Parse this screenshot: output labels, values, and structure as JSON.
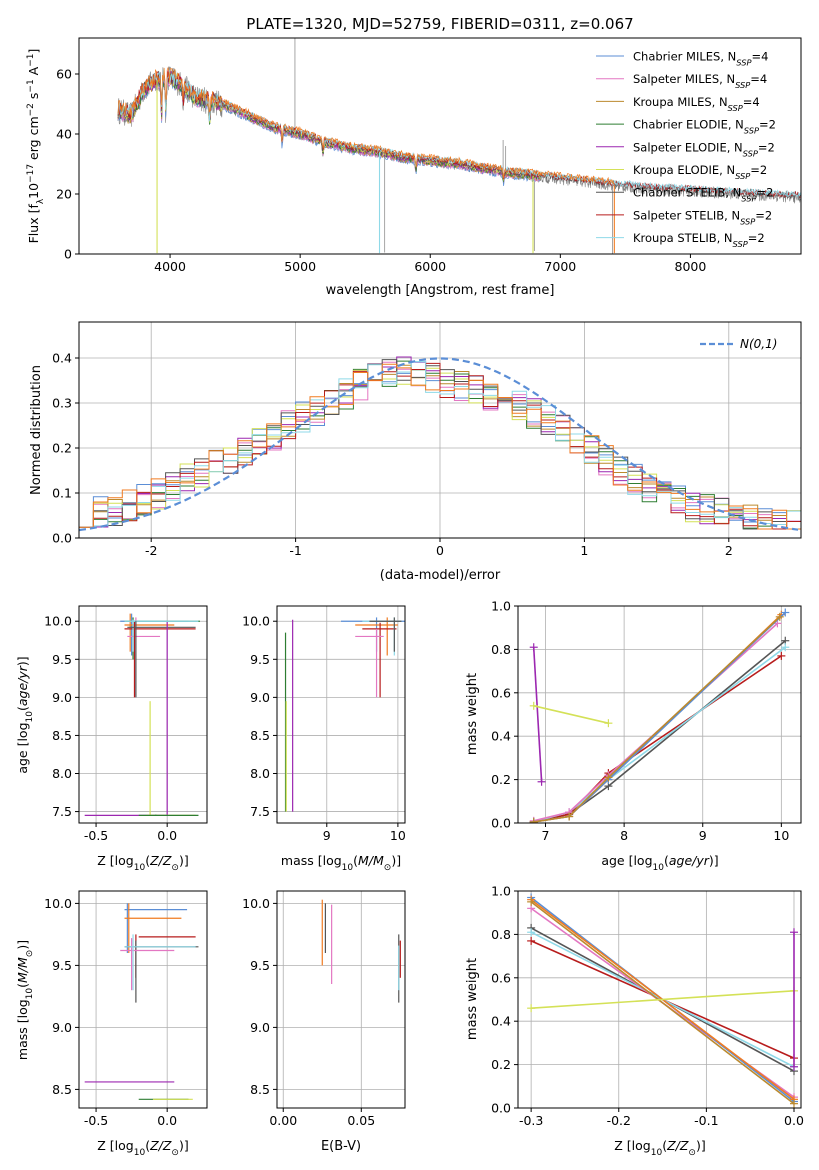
{
  "figure_title": "PLATE=1320, MJD=52759, FIBERID=0311, z=0.067",
  "colors": {
    "grey": "#808080",
    "chabrier_miles": "#5b8ed6",
    "salpeter_miles": "#e377c2",
    "kroupa_miles": "#bc8a2e",
    "chabrier_elodie": "#2e7d32",
    "salpeter_elodie": "#9c27b0",
    "kroupa_elodie": "#d4e157",
    "chabrier_stelib": "#555555",
    "salpeter_stelib": "#b71c1c",
    "kroupa_stelib": "#8fd9e8",
    "orange": "#f07b21",
    "gauss": "#5b8ed6"
  },
  "chart_data": [
    {
      "id": "spectrum",
      "type": "line",
      "xlabel": "wavelength [Angstrom, rest frame]",
      "ylabel": "Flux [f_λ 10^-17 erg cm^-2 s^-1 A^-1]",
      "xlim": [
        3300,
        8850
      ],
      "ylim": [
        0,
        72
      ],
      "xticks": [
        4000,
        5000,
        6000,
        7000,
        8000
      ],
      "yticks": [
        0,
        20,
        40,
        60
      ],
      "legend_position": "upper-right",
      "legend": [
        {
          "label": "Chabrier MILES, N",
          "sub": "SSP",
          "suffix": "=4",
          "color": "#5b8ed6"
        },
        {
          "label": "Salpeter MILES, N",
          "sub": "SSP",
          "suffix": "=4",
          "color": "#e377c2"
        },
        {
          "label": "Kroupa MILES, N",
          "sub": "SSP",
          "suffix": "=4",
          "color": "#bc8a2e"
        },
        {
          "label": "Chabrier ELODIE, N",
          "sub": "SSP",
          "suffix": "=2",
          "color": "#2e7d32"
        },
        {
          "label": "Salpeter ELODIE, N",
          "sub": "SSP",
          "suffix": "=2",
          "color": "#9c27b0"
        },
        {
          "label": "Kroupa ELODIE, N",
          "sub": "SSP",
          "suffix": "=2",
          "color": "#d4e157"
        },
        {
          "label": "Chabrier STELIB, N",
          "sub": "SSP",
          "suffix": "=2",
          "color": "#555555"
        },
        {
          "label": "Salpeter STELIB, N",
          "sub": "SSP",
          "suffix": "=2",
          "color": "#b71c1c"
        },
        {
          "label": "Kroupa STELIB, N",
          "sub": "SSP",
          "suffix": "=2",
          "color": "#8fd9e8"
        }
      ],
      "data_continuum": {
        "wavelength": [
          3600,
          3700,
          3800,
          3900,
          4000,
          4100,
          4200,
          4400,
          4600,
          4800,
          5000,
          5200,
          5400,
          5600,
          5800,
          6000,
          6200,
          6400,
          6600,
          6800,
          7000,
          7200,
          7400,
          7600,
          7800,
          8000,
          8200,
          8400,
          8600,
          8800
        ],
        "flux": [
          48,
          46,
          55,
          58,
          59,
          56,
          52,
          50,
          46,
          42,
          40,
          37,
          35,
          34,
          32,
          31,
          30,
          28.5,
          27,
          26,
          25,
          24,
          23,
          22,
          21.5,
          21,
          20.5,
          20,
          19.5,
          19
        ]
      }
    },
    {
      "id": "residuals",
      "type": "line",
      "xlabel": "(data-model)/error",
      "ylabel": "Normed distribution",
      "xlim": [
        -2.5,
        2.5
      ],
      "ylim": [
        0,
        0.48
      ],
      "xticks": [
        -2,
        -1,
        0,
        1,
        2
      ],
      "yticks": [
        0.0,
        0.1,
        0.2,
        0.3,
        0.4
      ],
      "grid": true,
      "legend": "N(0,1)",
      "legend_position": "upper-right",
      "histogram_envelope": {
        "x": [
          -2.5,
          -2.25,
          -2.0,
          -1.75,
          -1.5,
          -1.25,
          -1.0,
          -0.75,
          -0.5,
          -0.25,
          0.0,
          0.25,
          0.5,
          0.75,
          1.0,
          1.25,
          1.5,
          1.75,
          2.0,
          2.25,
          2.5
        ],
        "y": [
          0.055,
          0.06,
          0.09,
          0.13,
          0.17,
          0.21,
          0.26,
          0.3,
          0.35,
          0.37,
          0.35,
          0.33,
          0.3,
          0.26,
          0.21,
          0.15,
          0.1,
          0.07,
          0.055,
          0.035,
          0.03
        ]
      }
    },
    {
      "id": "age_vs_Z",
      "type": "scatter",
      "xlabel": "Z [log10(Z/Z_sun)]",
      "ylabel": "age [log10(age/yr)]",
      "xlim": [
        -0.62,
        0.28
      ],
      "ylim": [
        7.35,
        10.2
      ],
      "xticks": [
        -0.5,
        0.0
      ],
      "yticks": [
        7.5,
        8.0,
        8.5,
        9.0,
        9.5,
        10.0
      ],
      "grid": true
    },
    {
      "id": "age_vs_mass",
      "type": "scatter",
      "xlabel": "mass [log10(M/M_sun)]",
      "xlim": [
        8.3,
        10.1
      ],
      "ylim": [
        7.35,
        10.2
      ],
      "xticks": [
        9,
        10
      ],
      "yticks": [
        7.5,
        8.0,
        8.5,
        9.0,
        9.5,
        10.0
      ],
      "grid": true
    },
    {
      "id": "mass_weight_vs_age",
      "type": "line",
      "xlabel": "age [log10(age/yr)]",
      "ylabel": "mass weight",
      "xlim": [
        6.65,
        10.25
      ],
      "ylim": [
        0,
        1.0
      ],
      "xticks": [
        7,
        8,
        9,
        10
      ],
      "yticks": [
        0.0,
        0.2,
        0.4,
        0.6,
        0.8,
        1.0
      ],
      "grid": true
    },
    {
      "id": "mass_vs_Z",
      "type": "scatter",
      "xlabel": "Z [log10(Z/Z_sun)]",
      "ylabel": "mass [log10(M/M_sun)]",
      "xlim": [
        -0.62,
        0.28
      ],
      "ylim": [
        8.35,
        10.1
      ],
      "xticks": [
        -0.5,
        0.0
      ],
      "yticks": [
        8.5,
        9.0,
        9.5,
        10.0
      ],
      "grid": true
    },
    {
      "id": "mass_vs_ebv",
      "type": "scatter",
      "xlabel": "E(B-V)",
      "xlim": [
        -0.004,
        0.078
      ],
      "ylim": [
        8.35,
        10.1
      ],
      "xticks": [
        0.0,
        0.05
      ],
      "yticks": [
        8.5,
        9.0,
        9.5,
        10.0
      ],
      "grid": true
    },
    {
      "id": "mass_weight_vs_Z",
      "type": "line",
      "xlabel": "Z [log10(Z/Z_sun)]",
      "ylabel": "mass weight",
      "xlim": [
        -0.315,
        0.008
      ],
      "ylim": [
        0,
        1.0
      ],
      "xticks": [
        -0.3,
        -0.2,
        -0.1,
        0.0
      ],
      "yticks": [
        0.0,
        0.2,
        0.4,
        0.6,
        0.8,
        1.0
      ],
      "grid": true
    }
  ]
}
